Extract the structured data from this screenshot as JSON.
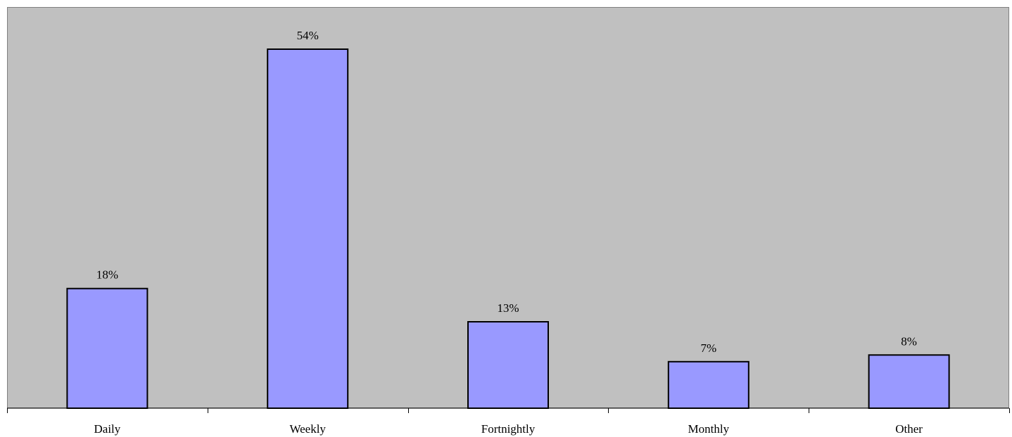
{
  "chart_data": {
    "type": "bar",
    "categories": [
      "Daily",
      "Weekly",
      "Fortnightly",
      "Monthly",
      "Other"
    ],
    "values": [
      18,
      54,
      13,
      7,
      8
    ],
    "data_labels": [
      "18%",
      "54%",
      "13%",
      "7%",
      "8%"
    ],
    "unit": "%",
    "title": "",
    "xlabel": "",
    "ylabel": "",
    "ylim": [
      0,
      60
    ],
    "grid": false,
    "legend": "none",
    "colors": {
      "bar_fill": "#9999ff",
      "bar_stroke": "#000000",
      "plot_background": "#c0c0c0",
      "plot_border": "#808080",
      "page_background": "#ffffff"
    }
  }
}
